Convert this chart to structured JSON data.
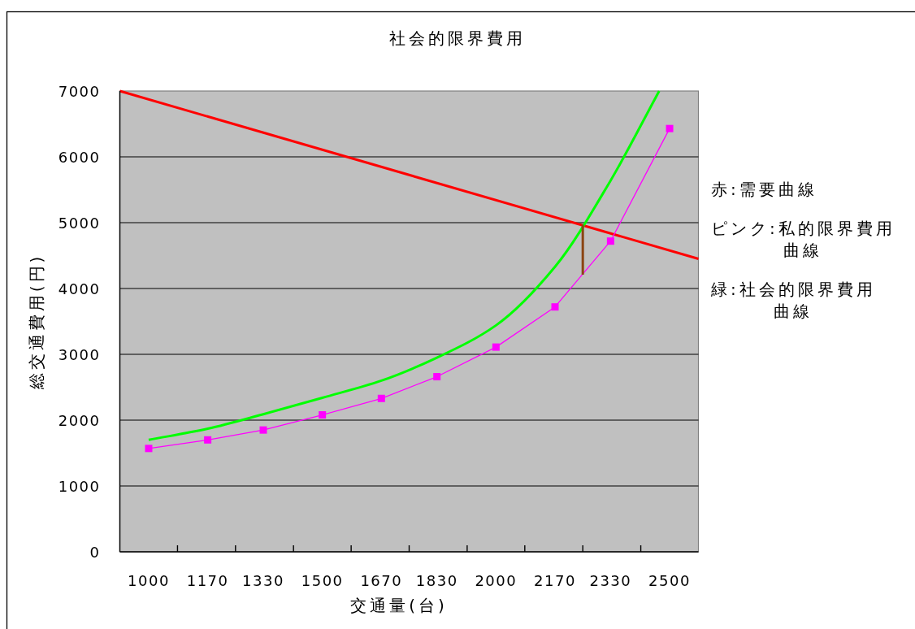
{
  "chart_data": {
    "type": "line",
    "title": "社会的限界費用",
    "xlabel": "交通量(台)",
    "ylabel": "総交通費用(円)",
    "xlim": [
      917,
      2583
    ],
    "xticks": [
      1000,
      {
        "value": 1083,
        "label": null
      },
      1170,
      {
        "value": 1250,
        "label": null
      },
      1330,
      {
        "value": 1417,
        "label": null
      },
      1500,
      {
        "value": 1583,
        "label": null
      },
      1670,
      {
        "value": 1750,
        "label": null
      },
      1830,
      {
        "value": 1917,
        "label": null
      },
      2000,
      {
        "value": 2083,
        "label": null
      },
      2170,
      {
        "value": 2250,
        "label": null
      },
      2330,
      {
        "value": 2417,
        "label": null
      },
      2500
    ],
    "ylim": [
      0,
      7000
    ],
    "yticks": [
      0,
      1000,
      2000,
      3000,
      4000,
      5000,
      6000,
      7000
    ],
    "grid": "y",
    "series": [
      {
        "color": "#ff0000",
        "x": [
          917,
          2583
        ],
        "values": [
          7000,
          4450
        ]
      },
      {
        "color": "#00ff00",
        "x": [
          1000,
          1170,
          1330,
          1500,
          1670,
          1830,
          2000,
          2170,
          2330,
          2470
        ],
        "values": [
          1700,
          1870,
          2090,
          2340,
          2600,
          2950,
          3440,
          4330,
          5640,
          7000
        ]
      },
      {
        "color": "#ff00ff",
        "marker": "square",
        "x": [
          1000,
          1170,
          1330,
          1500,
          1670,
          1830,
          2000,
          2170,
          2330,
          2500
        ],
        "values": [
          1570,
          1700,
          1850,
          2080,
          2330,
          2660,
          3110,
          3720,
          4720,
          6430
        ]
      },
      {
        "color": "#8b4513",
        "x": [
          2250,
          2250
        ],
        "values": [
          4970,
          4210
        ]
      }
    ],
    "annotations": [
      "赤:需要曲線",
      "ピンク:私的限界費用曲線",
      "緑:社会的限界費用曲線"
    ]
  }
}
